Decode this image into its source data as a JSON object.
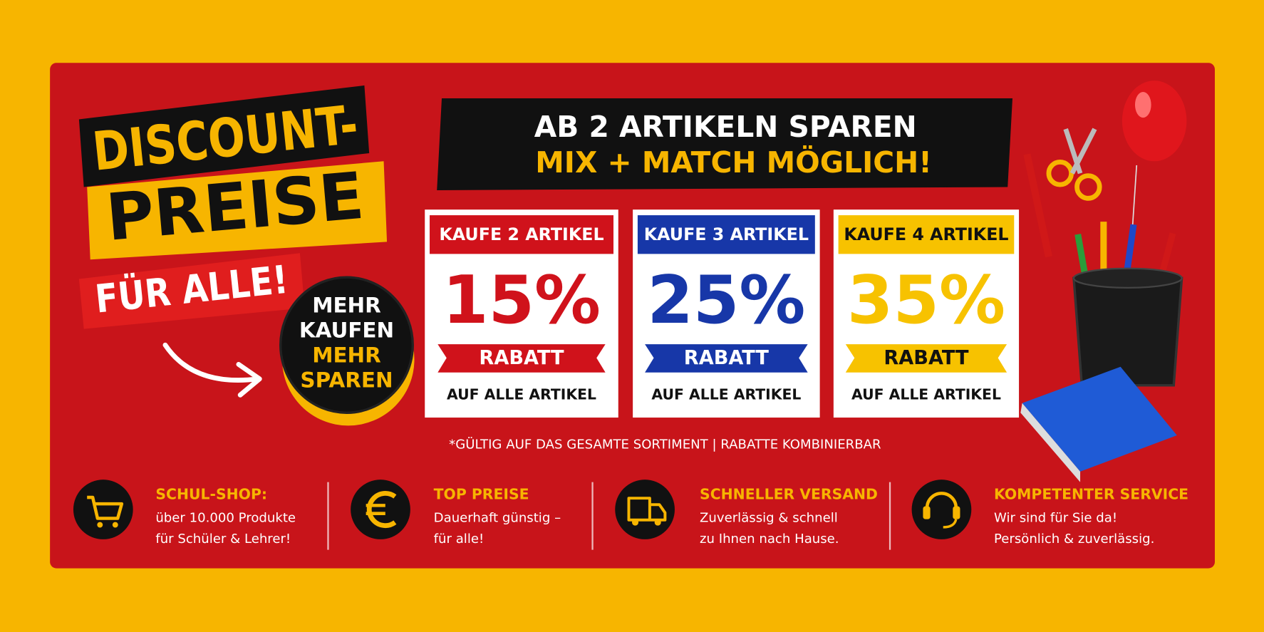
{
  "headline": {
    "line1": "DISCOUNT-",
    "line2": "PREISE",
    "line3": "FÜR ALLE!"
  },
  "badge": {
    "line1": "MEHR",
    "line2": "KAUFEN",
    "line3": "MEHR",
    "line4": "SPAREN"
  },
  "banner": {
    "line1": "AB 2 ARTIKELN SPAREN",
    "line2": "MIX + MATCH MÖGLICH!"
  },
  "offers": [
    {
      "title": "KAUFE 2 ARTIKEL",
      "discount": "15%",
      "label": "RABATT",
      "note": "AUF ALLE ARTIKEL"
    },
    {
      "title": "KAUFE 3 ARTIKEL",
      "discount": "25%",
      "label": "RABATT",
      "note": "AUF ALLE ARTIKEL"
    },
    {
      "title": "KAUFE 4 ARTIKEL",
      "discount": "35%",
      "label": "RABATT",
      "note": "AUF ALLE ARTIKEL"
    }
  ],
  "footnote": "*GÜLTIG AUF DAS GESAMTE SORTIMENT | RABATTE KOMBINIERBAR",
  "features": [
    {
      "title": "SCHUL-SHOP:",
      "lines": [
        "über 10.000 Produkte",
        "für Schüler & Lehrer!"
      ]
    },
    {
      "title": "TOP PREISE",
      "lines": [
        "Dauerhaft günstig –",
        "für alle!"
      ]
    },
    {
      "title": "SCHNELLER VERSAND",
      "lines": [
        "Zuverlässig & schnell",
        "zu Ihnen nach Hause."
      ]
    },
    {
      "title": "KOMPETENTER SERVICE",
      "lines": [
        "Wir sind für Sie da!",
        "Persönlich & zuverlässig."
      ]
    }
  ]
}
